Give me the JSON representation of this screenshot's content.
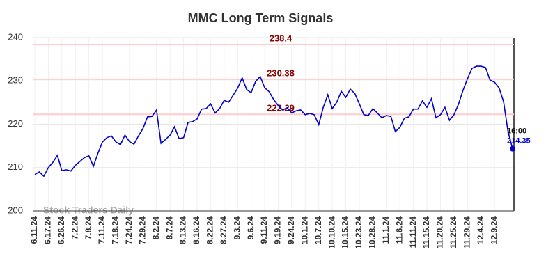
{
  "chart_data": {
    "type": "line",
    "title": "MMC Long Term Signals",
    "watermark": "Stock Traders Daily",
    "categories": [
      "6.11.24",
      null,
      null,
      "6.17.24",
      null,
      null,
      "6.26.24",
      null,
      null,
      "7.2.24",
      null,
      null,
      "7.8.24",
      null,
      null,
      "7.11.24",
      null,
      null,
      "7.18.24",
      null,
      null,
      "7.24.24",
      null,
      null,
      "7.29.24",
      null,
      null,
      "8.2.24",
      null,
      null,
      "8.7.24",
      null,
      null,
      "8.13.24",
      null,
      null,
      "8.16.24",
      null,
      null,
      "8.22.24",
      null,
      null,
      "8.27.24",
      null,
      null,
      "9.3.24",
      null,
      null,
      "9.6.24",
      null,
      null,
      "9.11.24",
      null,
      null,
      "9.19.24",
      null,
      null,
      "9.24.24",
      null,
      null,
      "10.1.24",
      null,
      null,
      "10.7.24",
      null,
      null,
      "10.10.24",
      null,
      null,
      "10.15.24",
      null,
      null,
      "10.23.24",
      null,
      null,
      "10.28.24",
      null,
      null,
      "11.1.24",
      null,
      null,
      "11.6.24",
      null,
      null,
      "11.11.24",
      null,
      null,
      "11.15.24",
      null,
      null,
      "11.20.24",
      null,
      null,
      "11.25.24",
      null,
      null,
      "11.29.24",
      null,
      null,
      "12.4.24",
      null,
      null,
      "12.9.24",
      null,
      null,
      null,
      null
    ],
    "values": [
      208.4,
      209.0,
      208.0,
      210.0,
      211.2,
      212.8,
      209.3,
      209.5,
      209.2,
      210.5,
      211.4,
      212.3,
      212.7,
      210.3,
      213.3,
      215.9,
      216.9,
      217.3,
      215.9,
      215.3,
      217.5,
      216.0,
      215.4,
      217.3,
      219.0,
      221.7,
      221.8,
      223.3,
      215.6,
      216.5,
      217.5,
      219.4,
      216.7,
      216.9,
      220.4,
      220.6,
      221.2,
      223.5,
      223.6,
      224.7,
      222.6,
      223.6,
      225.5,
      225.1,
      226.7,
      228.3,
      230.7,
      228.0,
      227.3,
      229.9,
      231.0,
      228.4,
      227.5,
      225.7,
      224.3,
      223.3,
      223.8,
      222.6,
      223.1,
      223.3,
      222.2,
      222.5,
      222.2,
      219.9,
      223.9,
      226.8,
      223.6,
      225.1,
      227.6,
      226.2,
      228.1,
      227.1,
      224.7,
      222.2,
      222.0,
      223.6,
      222.6,
      221.5,
      222.0,
      221.8,
      218.3,
      219.3,
      221.4,
      221.7,
      223.5,
      223.5,
      225.4,
      223.9,
      225.9,
      221.5,
      222.2,
      223.9,
      220.9,
      222.2,
      224.6,
      227.8,
      230.5,
      232.9,
      233.4,
      233.4,
      233.1,
      230.2,
      229.7,
      228.4,
      225.2,
      218.3,
      214.35
    ],
    "color": "#0000cc",
    "last_time_label": "16:00",
    "hlines": [
      {
        "value": 238.4,
        "color": "#ffcccc"
      },
      {
        "value": 230.38,
        "color": "#ffcccc"
      },
      {
        "value": 222.29,
        "color": "#ffcccc"
      }
    ],
    "hline_label_color": "#8b0000",
    "ylim": [
      200,
      240
    ],
    "yticks": [
      200,
      210,
      220,
      230,
      240
    ],
    "grid": true
  }
}
